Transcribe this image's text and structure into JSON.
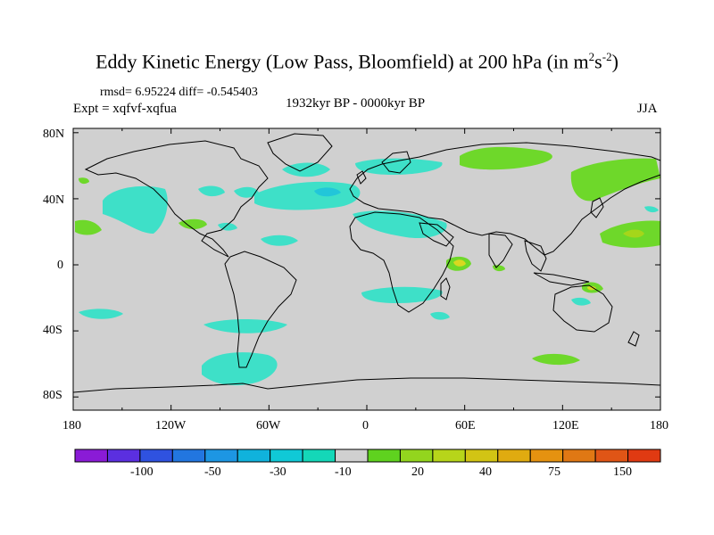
{
  "title": {
    "prefix": "Eddy Kinetic Energy (Low Pass, Bloomfield) at 200 hPa (in m",
    "sup1": "2",
    "mid": "s",
    "sup2": "-2",
    "suffix": ")"
  },
  "stats": "rmsd= 6.95224 diff= -0.545403",
  "experiment": "Expt = xqfvf-xqfua",
  "period": "1932kyr BP - 0000kyr BP",
  "season": "JJA",
  "axes": {
    "lat_labels": [
      "80N",
      "40N",
      "0",
      "40S",
      "80S"
    ],
    "lon_labels": [
      "180",
      "120W",
      "60W",
      "0",
      "60E",
      "120E",
      "180"
    ]
  },
  "colorbar": {
    "colors": [
      "#8a1bd6",
      "#5b2fe0",
      "#2f52e0",
      "#2276e0",
      "#1d96e3",
      "#10b2dc",
      "#10c9d6",
      "#14d7b8",
      "#d0d0d0",
      "#5fd21f",
      "#93d51e",
      "#b7d51a",
      "#d2c414",
      "#e0ab10",
      "#e59210",
      "#e07814",
      "#e05516",
      "#e03a12"
    ],
    "labels": [
      "-100",
      "-50",
      "-30",
      "-10",
      "20",
      "40",
      "75",
      "150"
    ]
  },
  "colors": {
    "land_bg": "#d0d0d0",
    "neg": "#3ee0c8",
    "neg_strong": "#22c6d9",
    "pos": "#6ed82a",
    "pos_mid": "#a5d61a",
    "pos_strong": "#d8d820"
  }
}
